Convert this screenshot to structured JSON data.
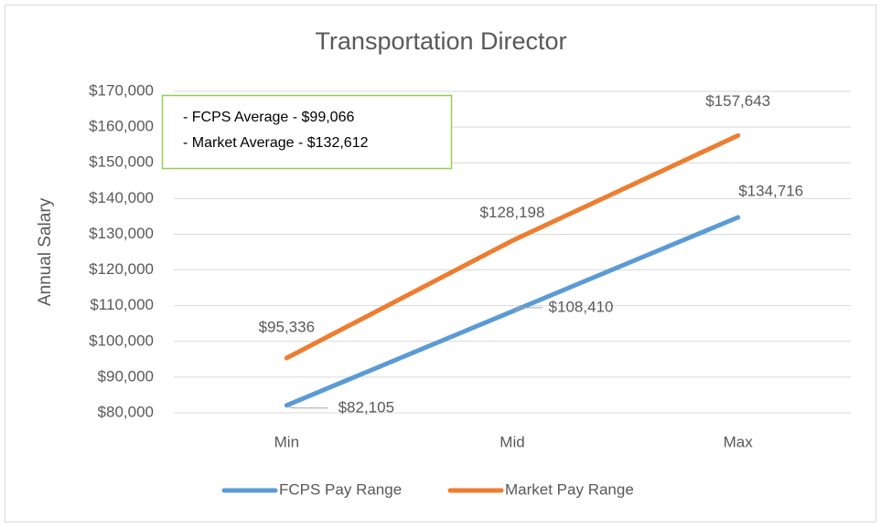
{
  "chart_data": {
    "type": "line",
    "title": "Transportation Director",
    "y_label": "Annual Salary",
    "categories": [
      "Min",
      "Mid",
      "Max"
    ],
    "series": [
      {
        "name": "FCPS Pay Range",
        "color": "#5b9bd5",
        "values": [
          82105,
          108410,
          134716
        ],
        "value_labels": [
          "$82,105",
          "$108,410",
          "$134,716"
        ]
      },
      {
        "name": "Market Pay Range",
        "color": "#ed7d31",
        "values": [
          95336,
          128198,
          157643
        ],
        "value_labels": [
          "$95,336",
          "$128,198",
          "$157,643"
        ]
      }
    ],
    "ylim": [
      80000,
      170000
    ],
    "yticks": [
      {
        "value": 80000,
        "label": "$80,000"
      },
      {
        "value": 90000,
        "label": "$90,000"
      },
      {
        "value": 100000,
        "label": "$100,000"
      },
      {
        "value": 110000,
        "label": "$110,000"
      },
      {
        "value": 120000,
        "label": "$120,000"
      },
      {
        "value": 130000,
        "label": "$130,000"
      },
      {
        "value": 140000,
        "label": "$140,000"
      },
      {
        "value": 150000,
        "label": "$150,000"
      },
      {
        "value": 160000,
        "label": "$160,000"
      },
      {
        "value": 170000,
        "label": "$170,000"
      }
    ],
    "grid": true,
    "legend": "bottom",
    "annotations": [
      "- FCPS Average - $99,066",
      "- Market Average - $132,612"
    ]
  }
}
